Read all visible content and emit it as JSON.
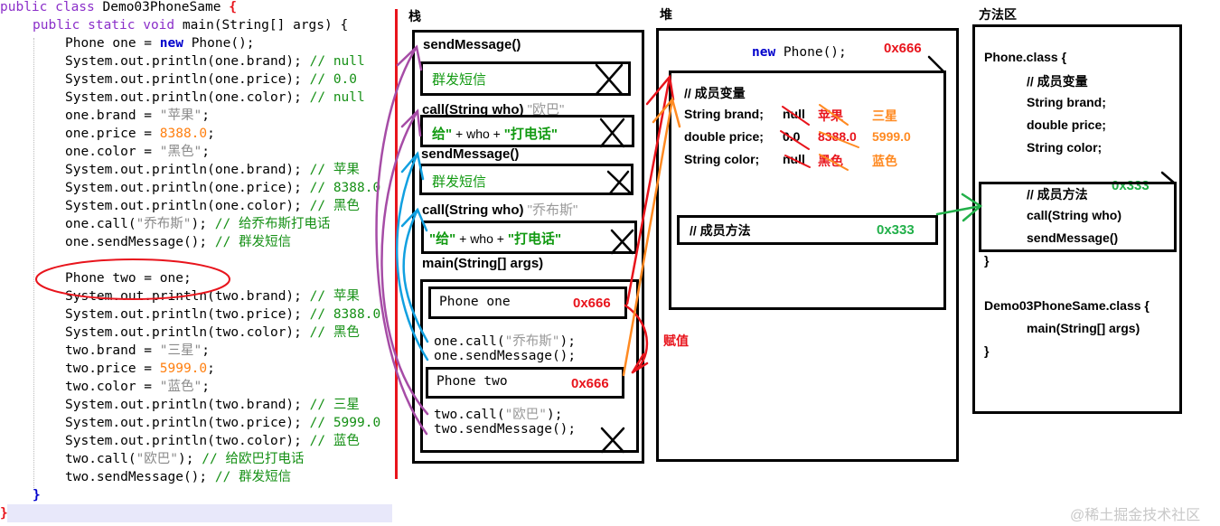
{
  "colors": {
    "keyword": "#8b2fc9",
    "new": "#0000cc",
    "comment": "#159015",
    "string": "#8a8a8a",
    "number": "#ff7f0f",
    "address": "#e8141c",
    "method_address": "#22b04a",
    "arrow_purple": "#a64ca6",
    "arrow_blue": "#11a0e0",
    "arrow_red": "#e8141c",
    "arrow_orange": "#ff8a22",
    "arrow_green": "#22b04a"
  },
  "code": [
    {
      "indent": 0,
      "segs": [
        [
          "kw",
          "public class "
        ],
        [
          "tx",
          "Demo03PhoneSame "
        ],
        [
          "rb",
          "{"
        ]
      ]
    },
    {
      "indent": 1,
      "segs": [
        [
          "kw",
          "public static void "
        ],
        [
          "tx",
          "main(String[] args) {"
        ]
      ]
    },
    {
      "indent": 2,
      "segs": [
        [
          "tx",
          "Phone one = "
        ],
        [
          "nw",
          "new"
        ],
        [
          "tx",
          " Phone();"
        ]
      ]
    },
    {
      "indent": 2,
      "segs": [
        [
          "tx",
          "System.out.println(one.brand); "
        ],
        [
          "cm",
          "// null"
        ]
      ]
    },
    {
      "indent": 2,
      "segs": [
        [
          "tx",
          "System.out.println(one.price); "
        ],
        [
          "cm",
          "// 0.0"
        ]
      ]
    },
    {
      "indent": 2,
      "segs": [
        [
          "tx",
          "System.out.println(one.color); "
        ],
        [
          "cm",
          "// null"
        ]
      ]
    },
    {
      "indent": 2,
      "segs": [
        [
          "tx",
          "one.brand = "
        ],
        [
          "st",
          "\"苹果\""
        ],
        [
          "tx",
          ";"
        ]
      ]
    },
    {
      "indent": 2,
      "segs": [
        [
          "tx",
          "one.price = "
        ],
        [
          "nm",
          "8388.0"
        ],
        [
          "tx",
          ";"
        ]
      ]
    },
    {
      "indent": 2,
      "segs": [
        [
          "tx",
          "one.color = "
        ],
        [
          "st",
          "\"黑色\""
        ],
        [
          "tx",
          ";"
        ]
      ]
    },
    {
      "indent": 2,
      "segs": [
        [
          "tx",
          "System.out.println(one.brand); "
        ],
        [
          "cm",
          "// 苹果"
        ]
      ]
    },
    {
      "indent": 2,
      "segs": [
        [
          "tx",
          "System.out.println(one.price); "
        ],
        [
          "cm",
          "// 8388.0"
        ]
      ]
    },
    {
      "indent": 2,
      "segs": [
        [
          "tx",
          "System.out.println(one.color); "
        ],
        [
          "cm",
          "// 黑色"
        ]
      ]
    },
    {
      "indent": 2,
      "segs": [
        [
          "tx",
          "one.call("
        ],
        [
          "st",
          "\"乔布斯\""
        ],
        [
          "tx",
          "); "
        ],
        [
          "cm",
          "// 给乔布斯打电话"
        ]
      ]
    },
    {
      "indent": 2,
      "segs": [
        [
          "tx",
          "one.sendMessage(); "
        ],
        [
          "cm",
          "// 群发短信"
        ]
      ]
    },
    {
      "indent": 2,
      "segs": []
    },
    {
      "indent": 2,
      "segs": [
        [
          "tx",
          "Phone two = one;"
        ]
      ]
    },
    {
      "indent": 2,
      "segs": [
        [
          "tx",
          "System.out.println(two.brand); "
        ],
        [
          "cm",
          "// 苹果"
        ]
      ]
    },
    {
      "indent": 2,
      "segs": [
        [
          "tx",
          "System.out.println(two.price); "
        ],
        [
          "cm",
          "// 8388.0"
        ]
      ]
    },
    {
      "indent": 2,
      "segs": [
        [
          "tx",
          "System.out.println(two.color); "
        ],
        [
          "cm",
          "// 黑色"
        ]
      ]
    },
    {
      "indent": 2,
      "segs": [
        [
          "tx",
          "two.brand = "
        ],
        [
          "st",
          "\"三星\""
        ],
        [
          "tx",
          ";"
        ]
      ]
    },
    {
      "indent": 2,
      "segs": [
        [
          "tx",
          "two.price = "
        ],
        [
          "nm",
          "5999.0"
        ],
        [
          "tx",
          ";"
        ]
      ]
    },
    {
      "indent": 2,
      "segs": [
        [
          "tx",
          "two.color = "
        ],
        [
          "st",
          "\"蓝色\""
        ],
        [
          "tx",
          ";"
        ]
      ]
    },
    {
      "indent": 2,
      "segs": [
        [
          "tx",
          "System.out.println(two.brand); "
        ],
        [
          "cm",
          "// 三星"
        ]
      ]
    },
    {
      "indent": 2,
      "segs": [
        [
          "tx",
          "System.out.println(two.price); "
        ],
        [
          "cm",
          "// 5999.0"
        ]
      ]
    },
    {
      "indent": 2,
      "segs": [
        [
          "tx",
          "System.out.println(two.color); "
        ],
        [
          "cm",
          "// 蓝色"
        ]
      ]
    },
    {
      "indent": 2,
      "segs": [
        [
          "tx",
          "two.call("
        ],
        [
          "st",
          "\"欧巴\""
        ],
        [
          "tx",
          "); "
        ],
        [
          "cm",
          "// 给欧巴打电话"
        ]
      ]
    },
    {
      "indent": 2,
      "segs": [
        [
          "tx",
          "two.sendMessage(); "
        ],
        [
          "cm",
          "// 群发短信"
        ]
      ]
    },
    {
      "indent": 1,
      "segs": [
        [
          "nw",
          "}"
        ]
      ]
    },
    {
      "indent": 0,
      "segs": [
        [
          "rb",
          "}"
        ]
      ]
    }
  ],
  "stack": {
    "title": "栈",
    "frames": {
      "send2": "sendMessage()",
      "send2_body": "群发短信",
      "call2": "call(String who)",
      "call2_arg": "\"欧巴\"",
      "call2_body_a": "给\"",
      "call2_body_b": " + who + ",
      "call2_body_c": "\"打电话\"",
      "send1": "sendMessage()",
      "send1_body": "群发短信",
      "call1": "call(String who)",
      "call1_arg": "\"乔布斯\"",
      "call1_body_a": "\"给\"",
      "call1_body_b": " + who + ",
      "call1_body_c": "\"打电话\"",
      "main": "main(String[] args)",
      "phone_one": "Phone one",
      "phone_one_addr": "0x666",
      "one_call_a": "one.call(",
      "one_call_arg": "\"乔布斯\"",
      "one_call_b": ");",
      "one_send": "one.sendMessage();",
      "phone_two": "Phone two",
      "phone_two_addr": "0x666",
      "two_call_a": "two.call(",
      "two_call_arg": "\"欧巴\"",
      "two_call_b": ");",
      "two_send": "two.sendMessage();"
    },
    "assign_label": "赋值"
  },
  "heap": {
    "title": "堆",
    "new_kw": "new",
    "new_rest": " Phone();",
    "address": "0x666",
    "vars_comment": "// 成员变量",
    "fields": [
      {
        "label": "String brand;",
        "default": "null",
        "v1": "苹果",
        "v2": "三星"
      },
      {
        "label": "double price;",
        "default": "0.0",
        "v1": "8388.0",
        "v2": "5999.0"
      },
      {
        "label": "String color;",
        "default": "null",
        "v1": "黑色",
        "v2": "蓝色"
      }
    ],
    "methods_comment": "// 成员方法",
    "methods_address": "0x333"
  },
  "method_area": {
    "title": "方法区",
    "phone_class": "Phone.class {",
    "vars_comment": "// 成员变量",
    "fields": [
      "String brand;",
      "double price;",
      "String color;"
    ],
    "methods_comment": "// 成员方法",
    "methods_address": "0x333",
    "methods": [
      "call(String who)",
      "sendMessage()"
    ],
    "close1": "}",
    "demo_class": "Demo03PhoneSame.class {",
    "demo_method": "main(String[] args)",
    "close2": "}"
  },
  "watermark": "@稀土掘金技术社区"
}
